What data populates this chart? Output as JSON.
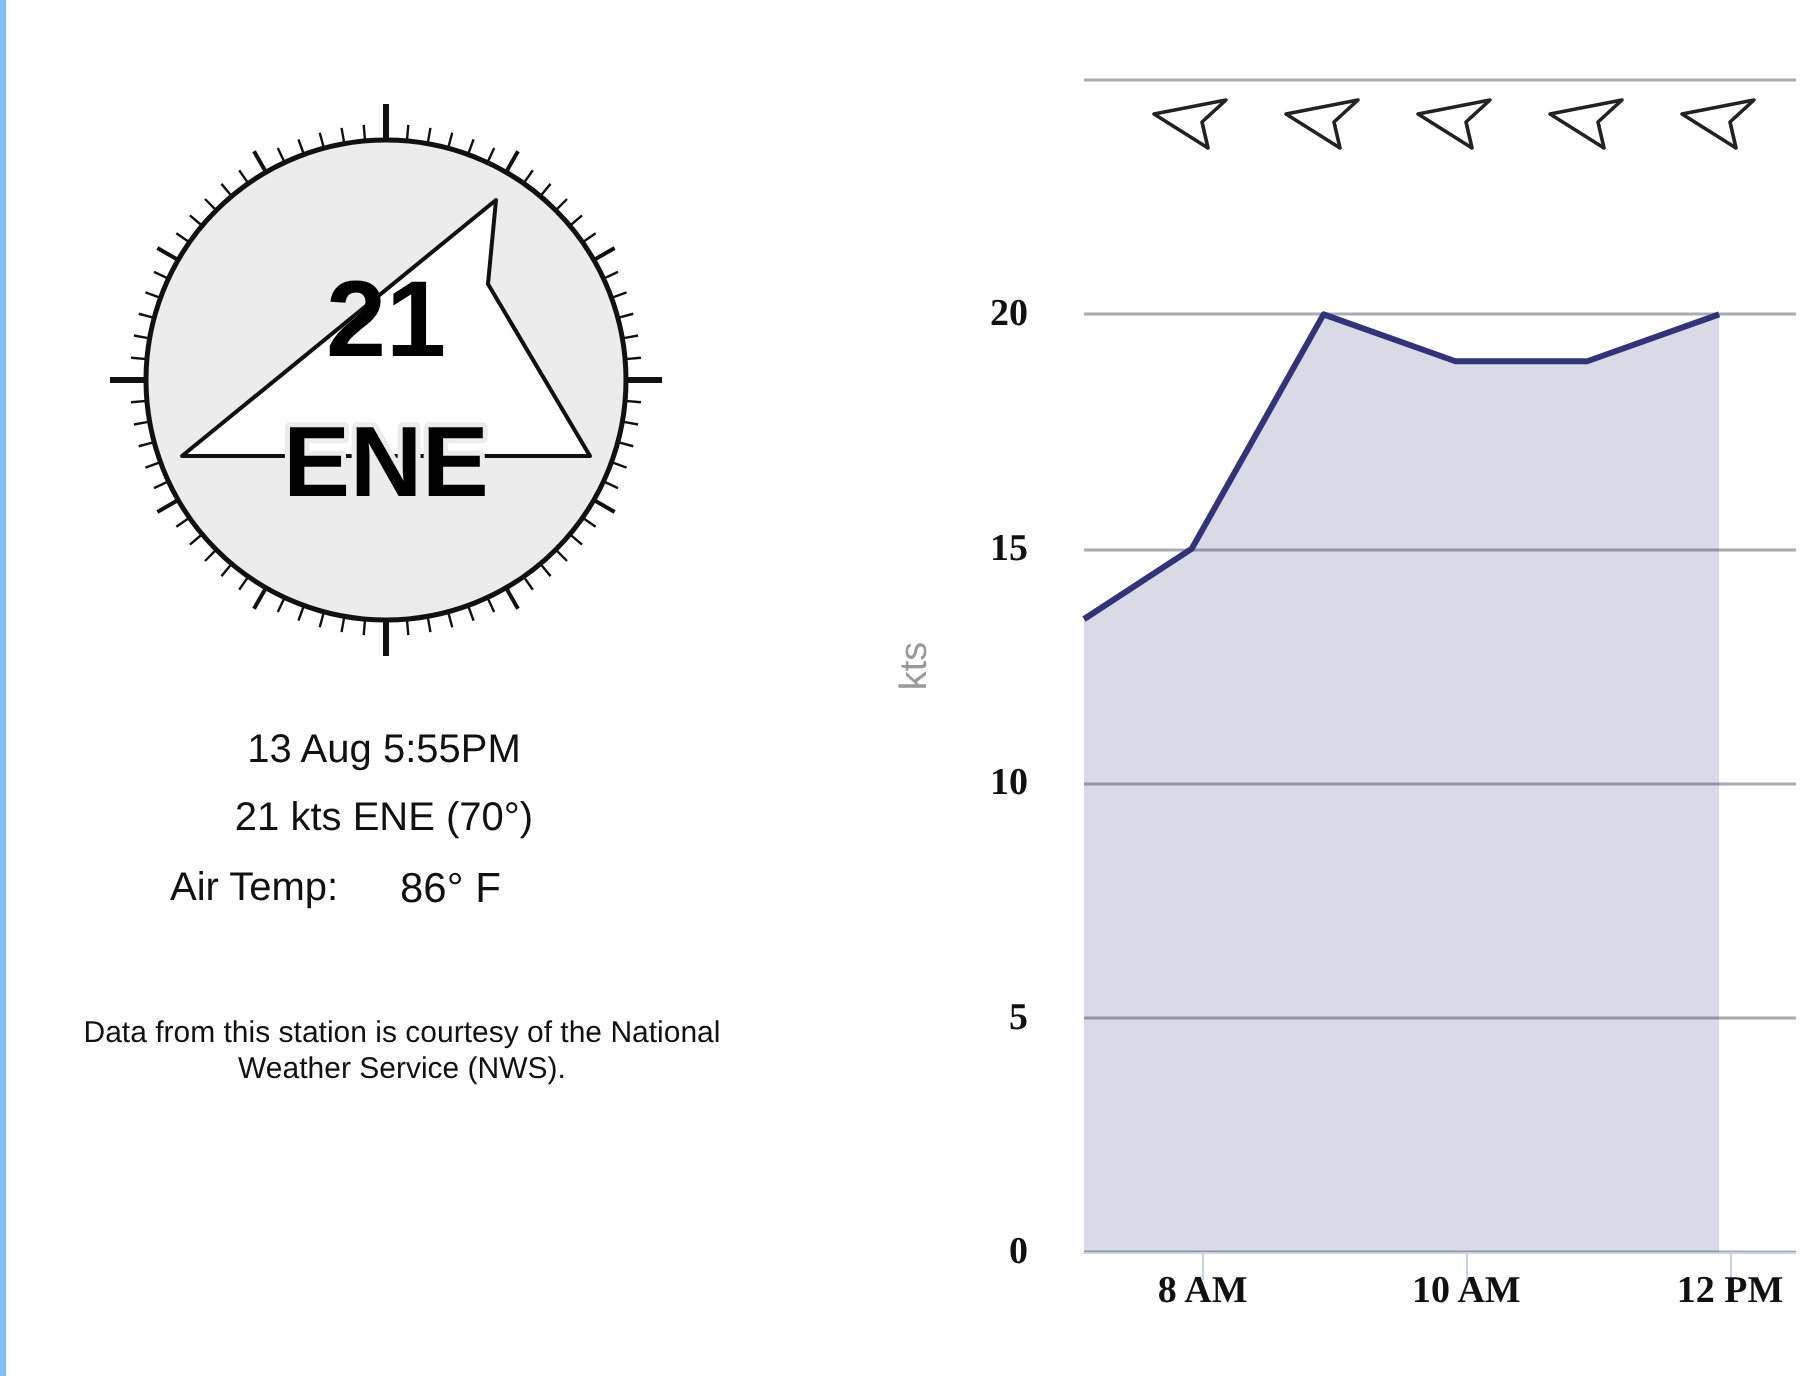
{
  "chart_data": [
    {
      "type": "other",
      "annotations": [
        "21",
        "ENE",
        "13 Aug 5:55PM",
        "21 kts ENE (70°)",
        "Air Temp:",
        "86° F",
        "Data from this station is courtesy of the National Weather Service (NWS)."
      ]
    },
    {
      "type": "area",
      "ylabel": "kts",
      "color": "#33337a",
      "x": [
        7.1,
        7.917,
        8.917,
        9.917,
        10.917,
        11.917
      ],
      "values": [
        13.5,
        15,
        20,
        19,
        19,
        20
      ],
      "xlim": [
        7.1,
        12.5
      ],
      "xticks": [
        {
          "value": 8,
          "label": "8 AM"
        },
        {
          "value": 10,
          "label": "10 AM"
        },
        {
          "value": 12,
          "label": "12 PM"
        }
      ],
      "ylim": [
        0,
        25
      ],
      "yticks": [
        0,
        5,
        10,
        15,
        20,
        {
          "value": 25,
          "label": null
        }
      ],
      "grid": "y"
    }
  ]
}
